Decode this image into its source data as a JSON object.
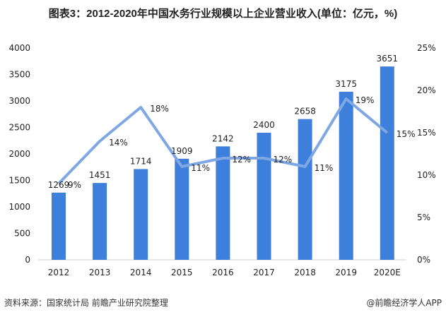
{
  "title": "图表3：2012-2020年中国水务行业规模以上企业营业收入(单位：亿元，%)",
  "source": "资料来源：国家统计局 前瞻产业研究院整理",
  "credit": "@前瞻经济学人APP",
  "colors": {
    "bar": "#3d7fdb",
    "line": "#7fa7e3"
  },
  "chart_data": {
    "type": "bar+line",
    "categories": [
      "2012",
      "2013",
      "2014",
      "2015",
      "2016",
      "2017",
      "2018",
      "2019",
      "2020E"
    ],
    "series": [
      {
        "type": "bar",
        "axis": "left",
        "values": [
          1269,
          1451,
          1714,
          1909,
          2142,
          2400,
          2658,
          3175,
          3651
        ],
        "labels": [
          "1269",
          "1451",
          "1714",
          "1909",
          "2142",
          "2400",
          "2658",
          "3175",
          "3651"
        ]
      },
      {
        "type": "line",
        "axis": "right",
        "values": [
          9,
          14,
          18,
          11,
          12,
          12,
          11,
          19,
          15
        ],
        "labels": [
          "9%",
          "14%",
          "18%",
          "11%",
          "12%",
          "12%",
          "11%",
          "19%",
          "15%"
        ]
      }
    ],
    "left_axis": {
      "ylim": [
        0,
        4000
      ],
      "ticks": [
        "0",
        "500",
        "1000",
        "1500",
        "2000",
        "2500",
        "3000",
        "3500",
        "4000"
      ]
    },
    "right_axis": {
      "ylim": [
        0,
        25
      ],
      "ticks": [
        "0%",
        "5%",
        "10%",
        "15%",
        "20%",
        "25%"
      ]
    },
    "grid": false,
    "legend": "none"
  }
}
